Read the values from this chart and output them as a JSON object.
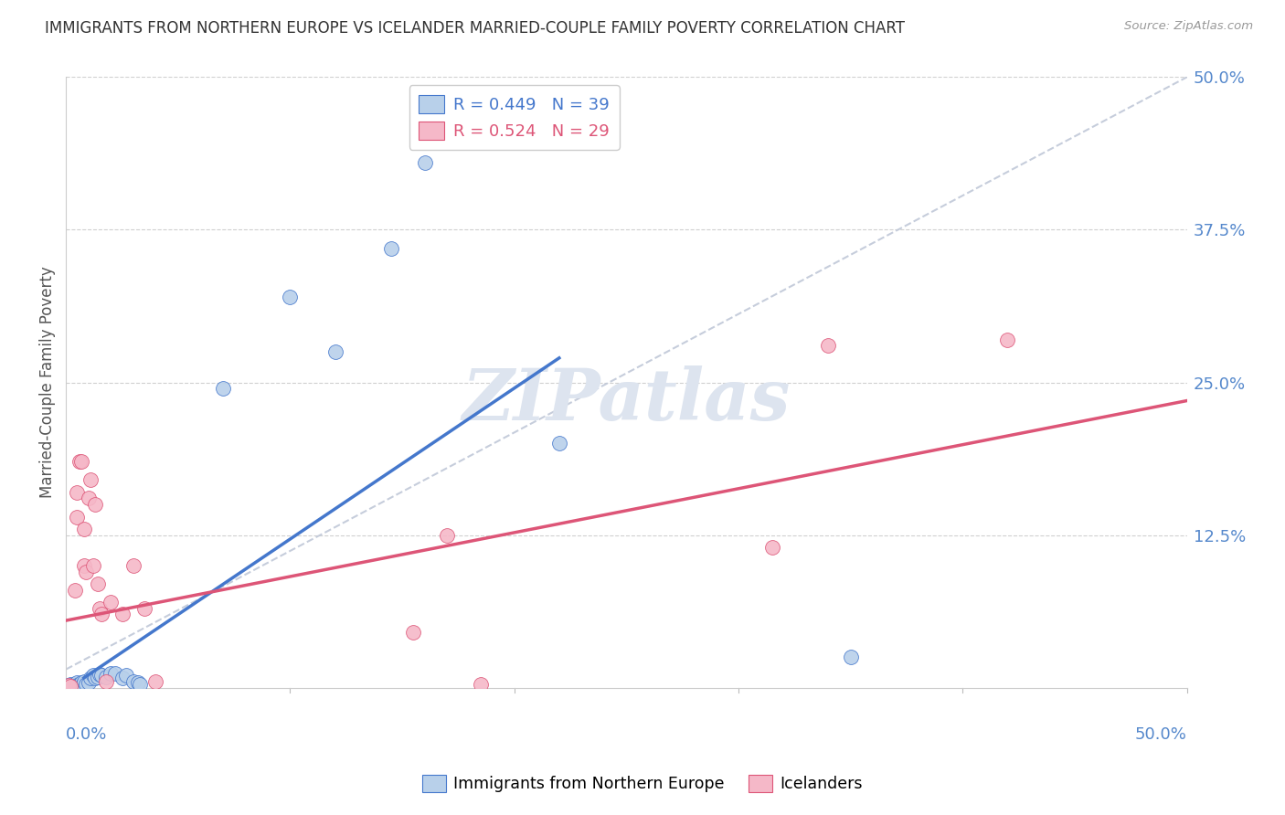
{
  "title": "IMMIGRANTS FROM NORTHERN EUROPE VS ICELANDER MARRIED-COUPLE FAMILY POVERTY CORRELATION CHART",
  "source": "Source: ZipAtlas.com",
  "ylabel": "Married-Couple Family Poverty",
  "R_blue": 0.449,
  "N_blue": 39,
  "R_pink": 0.524,
  "N_pink": 29,
  "blue_color": "#b8d0ea",
  "blue_line_color": "#4477cc",
  "pink_color": "#f5b8c8",
  "pink_line_color": "#dd5577",
  "ref_line_color": "#c0c8d8",
  "watermark": "ZIPatlas",
  "watermark_color": "#dde4ef",
  "axis_label_color": "#5588cc",
  "title_color": "#333333",
  "xlim": [
    0.0,
    0.5
  ],
  "ylim": [
    0.0,
    0.5
  ],
  "blue_points": [
    [
      0.001,
      0.002
    ],
    [
      0.001,
      0.001
    ],
    [
      0.002,
      0.003
    ],
    [
      0.002,
      0.001
    ],
    [
      0.003,
      0.002
    ],
    [
      0.003,
      0.001
    ],
    [
      0.004,
      0.003
    ],
    [
      0.004,
      0.001
    ],
    [
      0.005,
      0.004
    ],
    [
      0.005,
      0.002
    ],
    [
      0.005,
      0.001
    ],
    [
      0.006,
      0.003
    ],
    [
      0.006,
      0.002
    ],
    [
      0.007,
      0.004
    ],
    [
      0.007,
      0.001
    ],
    [
      0.008,
      0.005
    ],
    [
      0.009,
      0.003
    ],
    [
      0.01,
      0.004
    ],
    [
      0.011,
      0.008
    ],
    [
      0.012,
      0.01
    ],
    [
      0.013,
      0.008
    ],
    [
      0.014,
      0.009
    ],
    [
      0.015,
      0.011
    ],
    [
      0.016,
      0.01
    ],
    [
      0.018,
      0.009
    ],
    [
      0.02,
      0.012
    ],
    [
      0.022,
      0.012
    ],
    [
      0.025,
      0.008
    ],
    [
      0.027,
      0.01
    ],
    [
      0.03,
      0.005
    ],
    [
      0.032,
      0.004
    ],
    [
      0.033,
      0.003
    ],
    [
      0.07,
      0.245
    ],
    [
      0.1,
      0.32
    ],
    [
      0.12,
      0.275
    ],
    [
      0.145,
      0.36
    ],
    [
      0.16,
      0.43
    ],
    [
      0.22,
      0.2
    ],
    [
      0.35,
      0.025
    ]
  ],
  "pink_points": [
    [
      0.001,
      0.002
    ],
    [
      0.002,
      0.001
    ],
    [
      0.004,
      0.08
    ],
    [
      0.005,
      0.16
    ],
    [
      0.005,
      0.14
    ],
    [
      0.006,
      0.185
    ],
    [
      0.007,
      0.185
    ],
    [
      0.008,
      0.13
    ],
    [
      0.008,
      0.1
    ],
    [
      0.009,
      0.095
    ],
    [
      0.01,
      0.155
    ],
    [
      0.011,
      0.17
    ],
    [
      0.012,
      0.1
    ],
    [
      0.013,
      0.15
    ],
    [
      0.014,
      0.085
    ],
    [
      0.015,
      0.065
    ],
    [
      0.016,
      0.06
    ],
    [
      0.018,
      0.005
    ],
    [
      0.02,
      0.07
    ],
    [
      0.025,
      0.06
    ],
    [
      0.03,
      0.1
    ],
    [
      0.035,
      0.065
    ],
    [
      0.04,
      0.005
    ],
    [
      0.155,
      0.045
    ],
    [
      0.17,
      0.125
    ],
    [
      0.185,
      0.003
    ],
    [
      0.315,
      0.115
    ],
    [
      0.34,
      0.28
    ],
    [
      0.42,
      0.285
    ]
  ],
  "blue_line": [
    [
      0.008,
      0.008
    ],
    [
      0.22,
      0.27
    ]
  ],
  "pink_line": [
    [
      0.0,
      0.055
    ],
    [
      0.5,
      0.235
    ]
  ]
}
